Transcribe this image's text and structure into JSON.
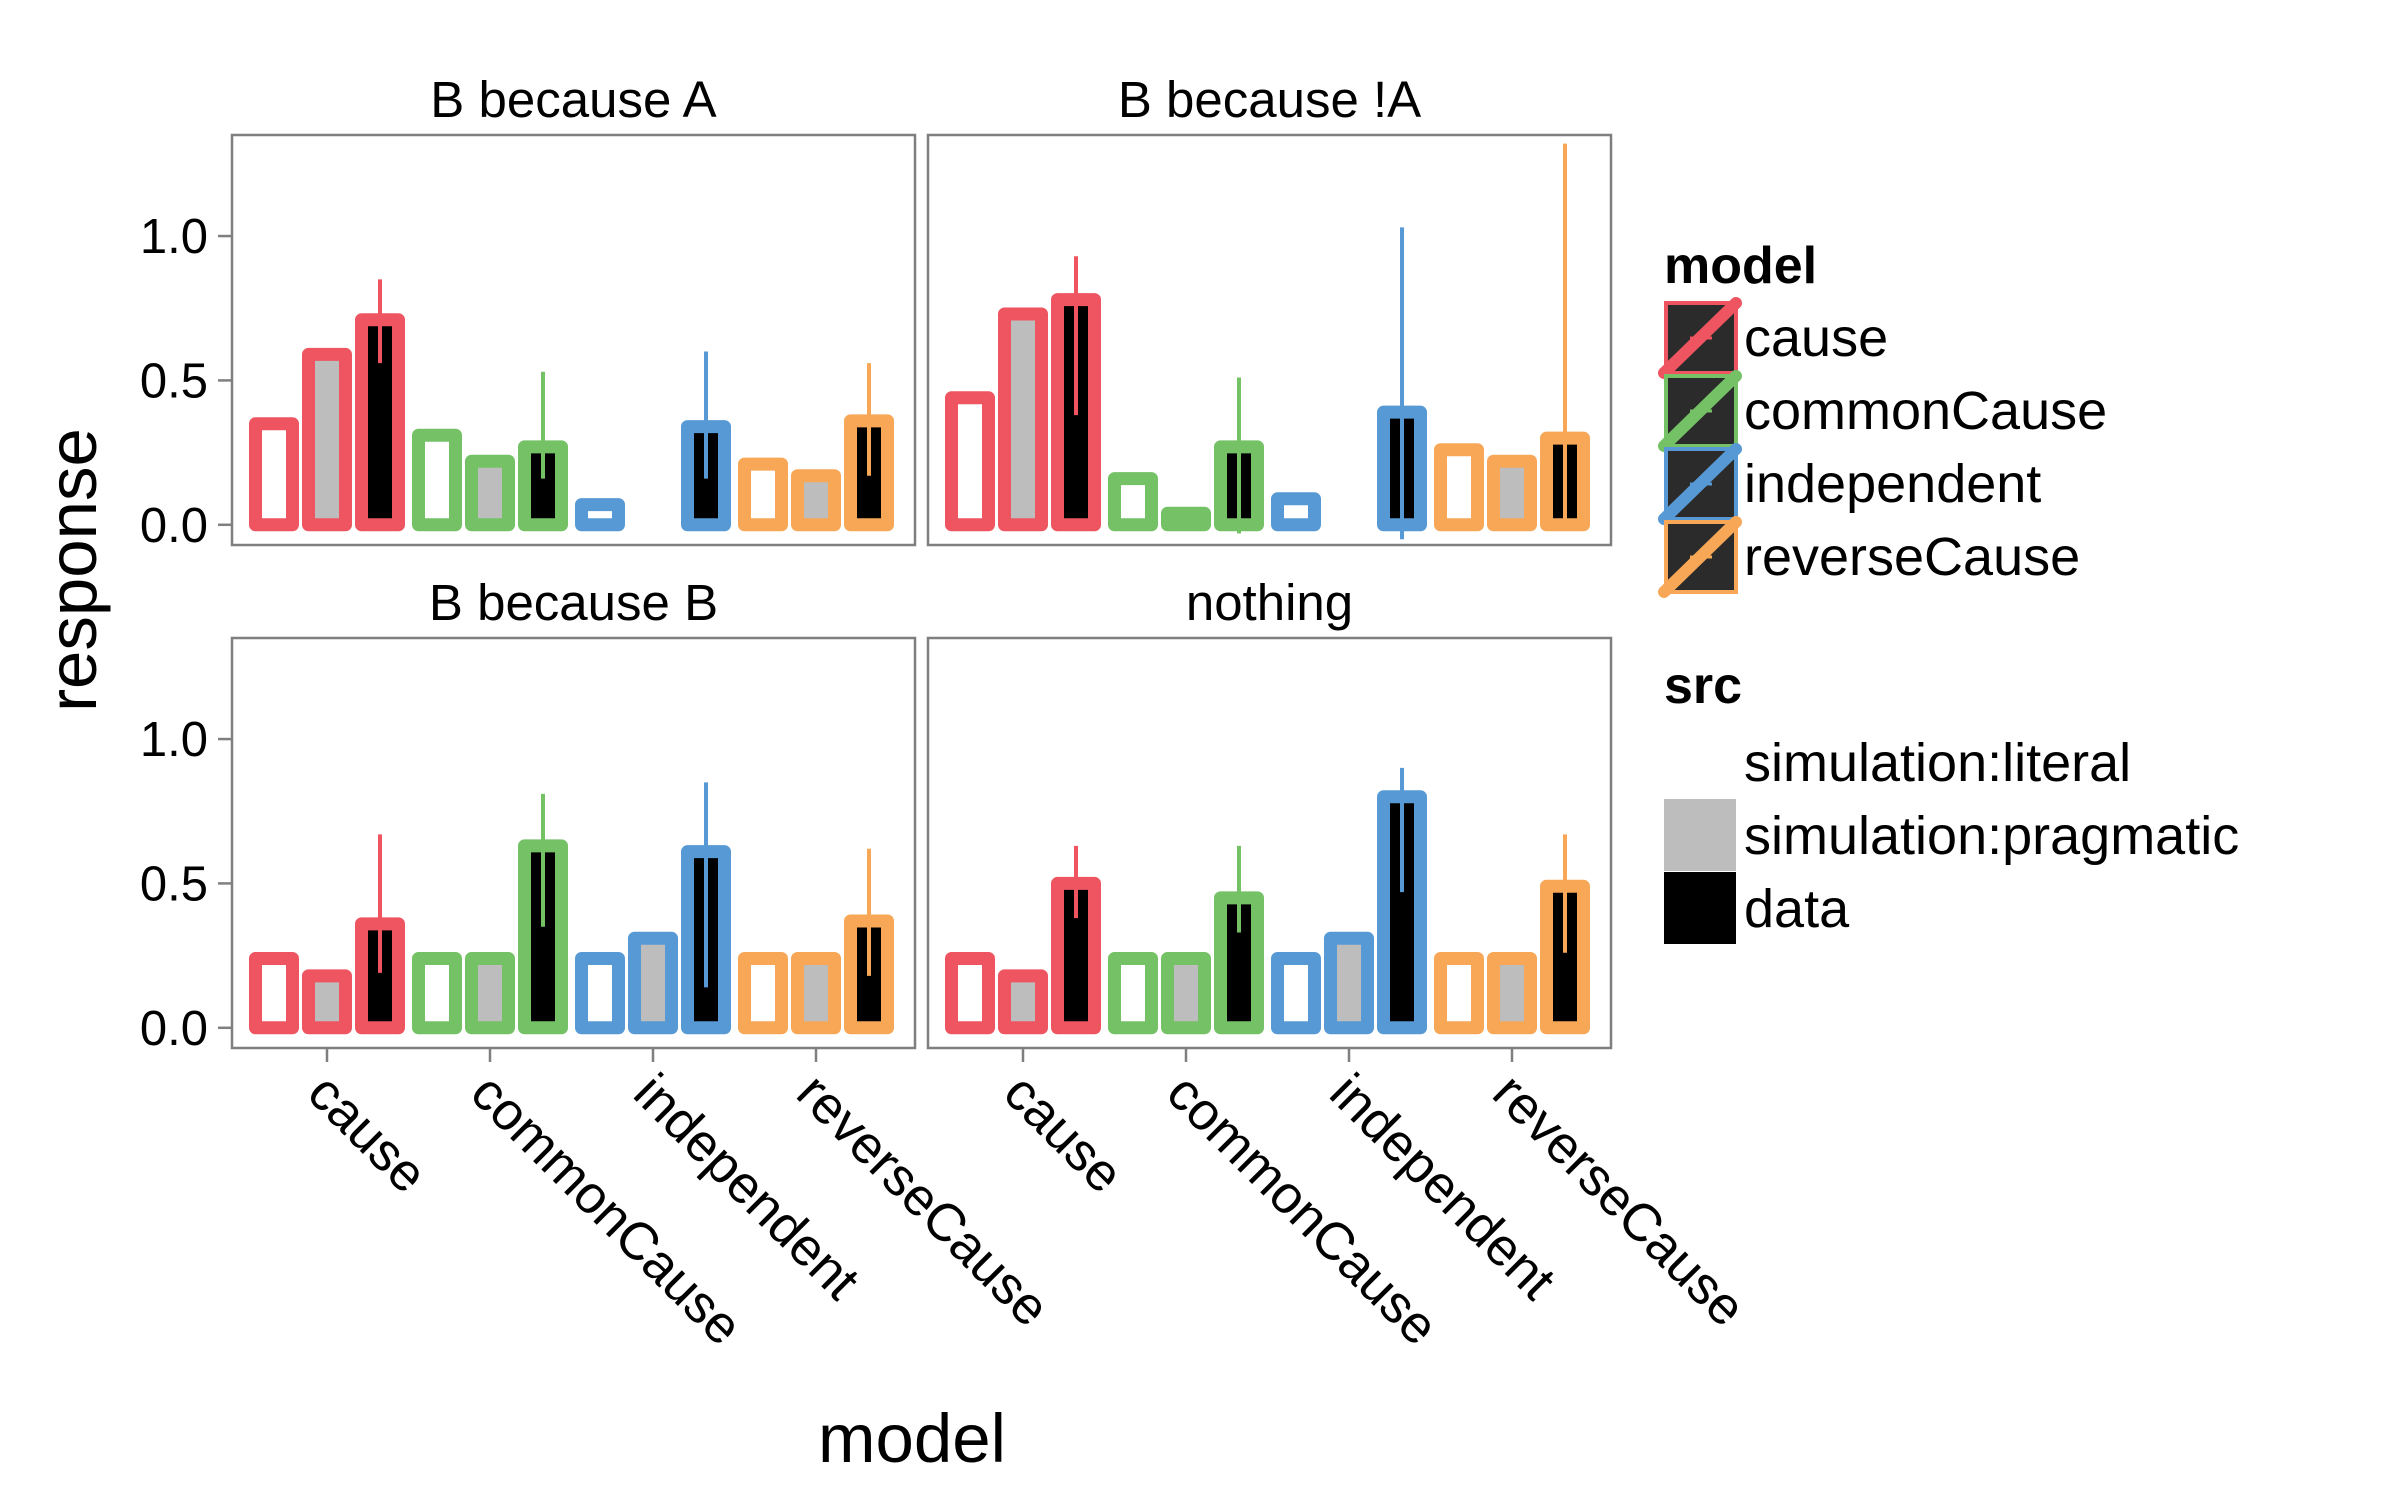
{
  "chart_data": {
    "type": "bar",
    "xlabel": "model",
    "ylabel": "response",
    "ylim": [
      -0.07,
      1.35
    ],
    "yticks": [
      0.0,
      0.5,
      1.0
    ],
    "ytick_labels": [
      "0.0",
      "0.5",
      "1.0"
    ],
    "categories": [
      "cause",
      "commonCause",
      "independent",
      "reverseCause"
    ],
    "grid": false,
    "legend_position": "right",
    "colors": {
      "cause": "#EE5560",
      "commonCause": "#74C166",
      "independent": "#5799D5",
      "reverseCause": "#F7A756",
      "simulation:literal": "#FFFFFF",
      "simulation:pragmatic": "#BDBDBD",
      "data": "#000000"
    },
    "legend": {
      "model": {
        "title": "model",
        "items": [
          "cause",
          "commonCause",
          "independent",
          "reverseCause"
        ]
      },
      "src": {
        "title": "src",
        "items": [
          "simulation:literal",
          "simulation:pragmatic",
          "data"
        ]
      }
    },
    "panels": [
      {
        "title": "B because A",
        "bars": {
          "cause": {
            "literal": 0.35,
            "pragmatic": 0.59,
            "data": 0.71,
            "data_ci": [
              0.56,
              0.85
            ]
          },
          "commonCause": {
            "literal": 0.31,
            "pragmatic": 0.22,
            "data": 0.27,
            "data_ci": [
              0.16,
              0.53
            ]
          },
          "independent": {
            "literal": 0.07,
            "pragmatic": 0.0,
            "data": 0.34,
            "data_ci": [
              0.16,
              0.6
            ]
          },
          "reverseCause": {
            "literal": 0.21,
            "pragmatic": 0.17,
            "data": 0.36,
            "data_ci": [
              0.17,
              0.56
            ]
          }
        }
      },
      {
        "title": "B because !A",
        "bars": {
          "cause": {
            "literal": 0.44,
            "pragmatic": 0.73,
            "data": 0.78,
            "data_ci": [
              0.38,
              0.93
            ]
          },
          "commonCause": {
            "literal": 0.16,
            "pragmatic": 0.04,
            "data": 0.27,
            "data_ci": [
              -0.03,
              0.51
            ]
          },
          "independent": {
            "literal": 0.09,
            "pragmatic": 0.0,
            "data": 0.39,
            "data_ci": [
              -0.05,
              1.03
            ]
          },
          "reverseCause": {
            "literal": 0.26,
            "pragmatic": 0.22,
            "data": 0.3,
            "data_ci": [
              0.02,
              1.32
            ]
          }
        }
      },
      {
        "title": "B because B",
        "bars": {
          "cause": {
            "literal": 0.24,
            "pragmatic": 0.18,
            "data": 0.36,
            "data_ci": [
              0.19,
              0.67
            ]
          },
          "commonCause": {
            "literal": 0.24,
            "pragmatic": 0.24,
            "data": 0.63,
            "data_ci": [
              0.35,
              0.81
            ]
          },
          "independent": {
            "literal": 0.24,
            "pragmatic": 0.31,
            "data": 0.61,
            "data_ci": [
              0.14,
              0.85
            ]
          },
          "reverseCause": {
            "literal": 0.24,
            "pragmatic": 0.24,
            "data": 0.37,
            "data_ci": [
              0.18,
              0.62
            ]
          }
        }
      },
      {
        "title": "nothing",
        "bars": {
          "cause": {
            "literal": 0.24,
            "pragmatic": 0.18,
            "data": 0.5,
            "data_ci": [
              0.38,
              0.63
            ]
          },
          "commonCause": {
            "literal": 0.24,
            "pragmatic": 0.24,
            "data": 0.45,
            "data_ci": [
              0.33,
              0.63
            ]
          },
          "independent": {
            "literal": 0.24,
            "pragmatic": 0.31,
            "data": 0.8,
            "data_ci": [
              0.47,
              0.9
            ]
          },
          "reverseCause": {
            "literal": 0.24,
            "pragmatic": 0.24,
            "data": 0.49,
            "data_ci": [
              0.26,
              0.67
            ]
          }
        }
      }
    ]
  }
}
